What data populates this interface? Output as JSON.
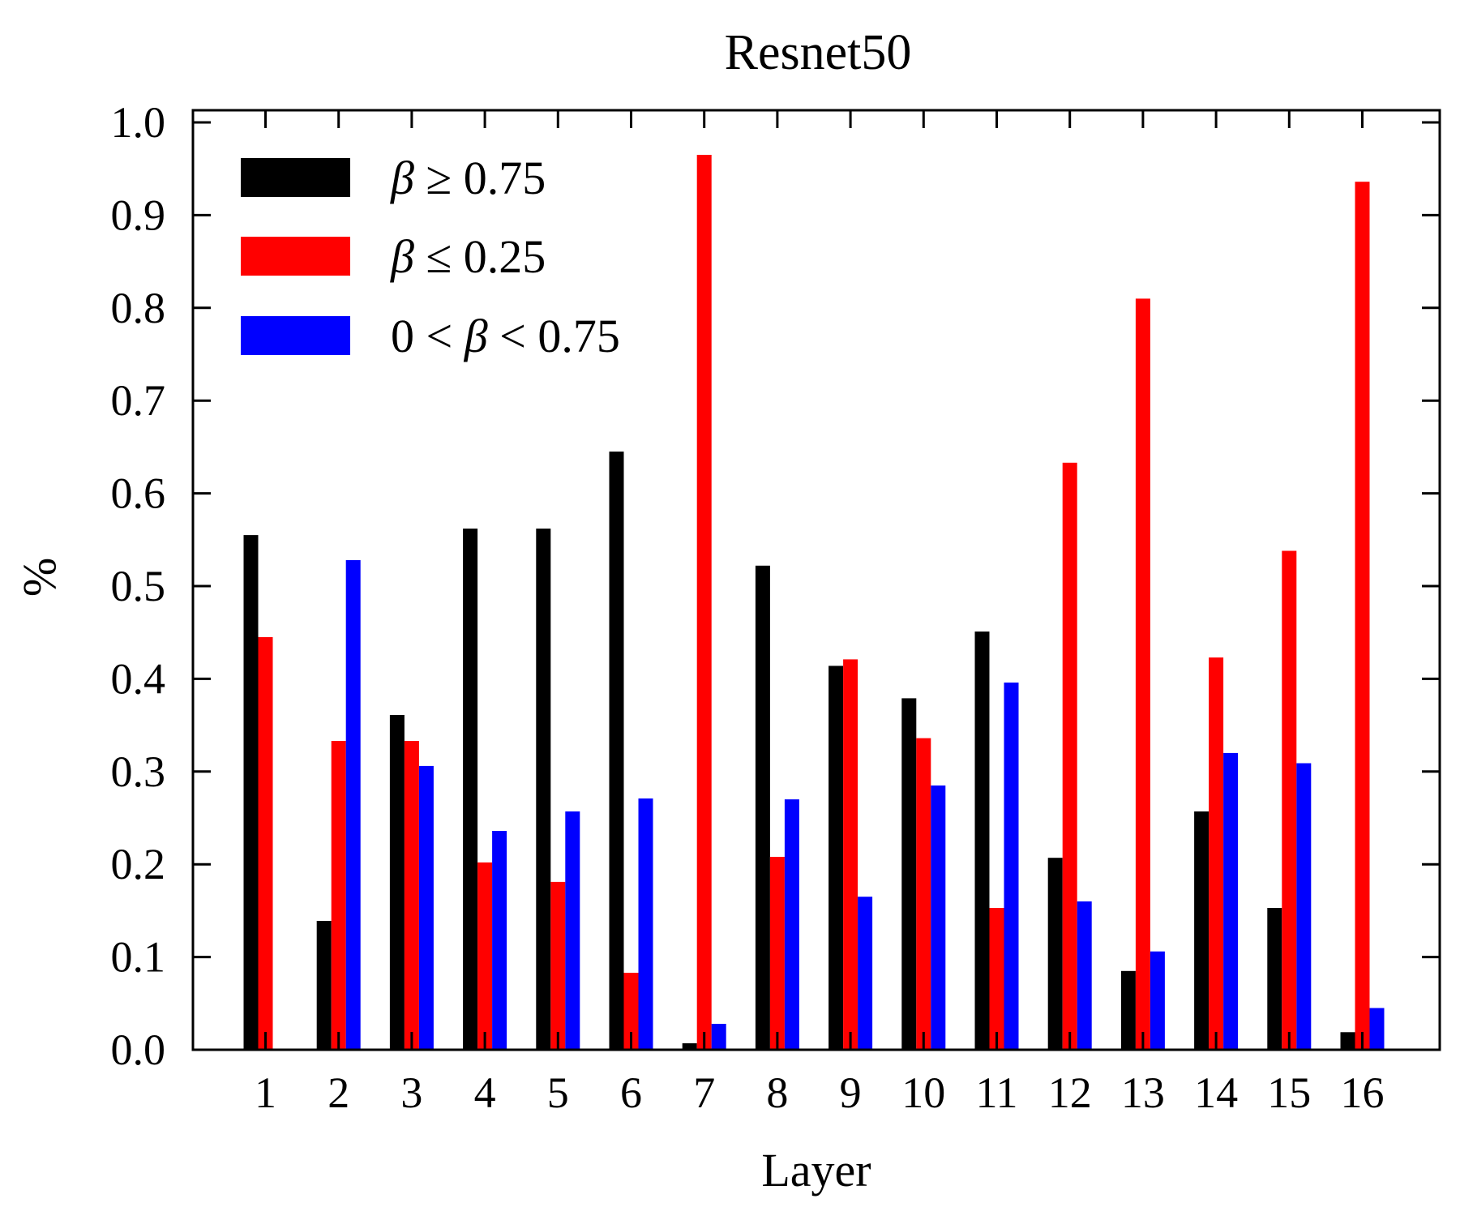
{
  "chart_data": {
    "type": "bar",
    "title": "Resnet50",
    "xlabel": "Layer",
    "ylabel": "%",
    "ylim": [
      0.0,
      1.0
    ],
    "yticks": [
      "0.0",
      "0.1",
      "0.2",
      "0.3",
      "0.4",
      "0.5",
      "0.6",
      "0.7",
      "0.8",
      "0.9",
      "1.0"
    ],
    "categories": [
      "1",
      "2",
      "3",
      "4",
      "5",
      "6",
      "7",
      "8",
      "9",
      "10",
      "11",
      "12",
      "13",
      "14",
      "15",
      "16"
    ],
    "grid": false,
    "legend_position": "top-left",
    "series": [
      {
        "name": "β ≥ 0.75",
        "legend_symbol": "β",
        "legend_rest": " ≥ 0.75",
        "color": "#000000",
        "values": [
          0.555,
          0.139,
          0.361,
          0.562,
          0.562,
          0.645,
          0.007,
          0.522,
          0.414,
          0.379,
          0.451,
          0.207,
          0.085,
          0.257,
          0.153,
          0.019
        ]
      },
      {
        "name": "β ≤ 0.25",
        "legend_symbol": "β",
        "legend_rest": " ≤ 0.25",
        "color": "#ff0000",
        "values": [
          0.445,
          0.333,
          0.333,
          0.202,
          0.181,
          0.083,
          0.965,
          0.208,
          0.421,
          0.336,
          0.153,
          0.633,
          0.81,
          0.423,
          0.538,
          0.936
        ]
      },
      {
        "name": "0 < β < 0.75",
        "legend_prefix": "0 < ",
        "legend_symbol": "β",
        "legend_rest": " < 0.75",
        "color": "#0000ff",
        "values": [
          0.0,
          0.528,
          0.306,
          0.236,
          0.257,
          0.271,
          0.028,
          0.27,
          0.165,
          0.285,
          0.396,
          0.16,
          0.106,
          0.32,
          0.309,
          0.045
        ]
      }
    ]
  }
}
